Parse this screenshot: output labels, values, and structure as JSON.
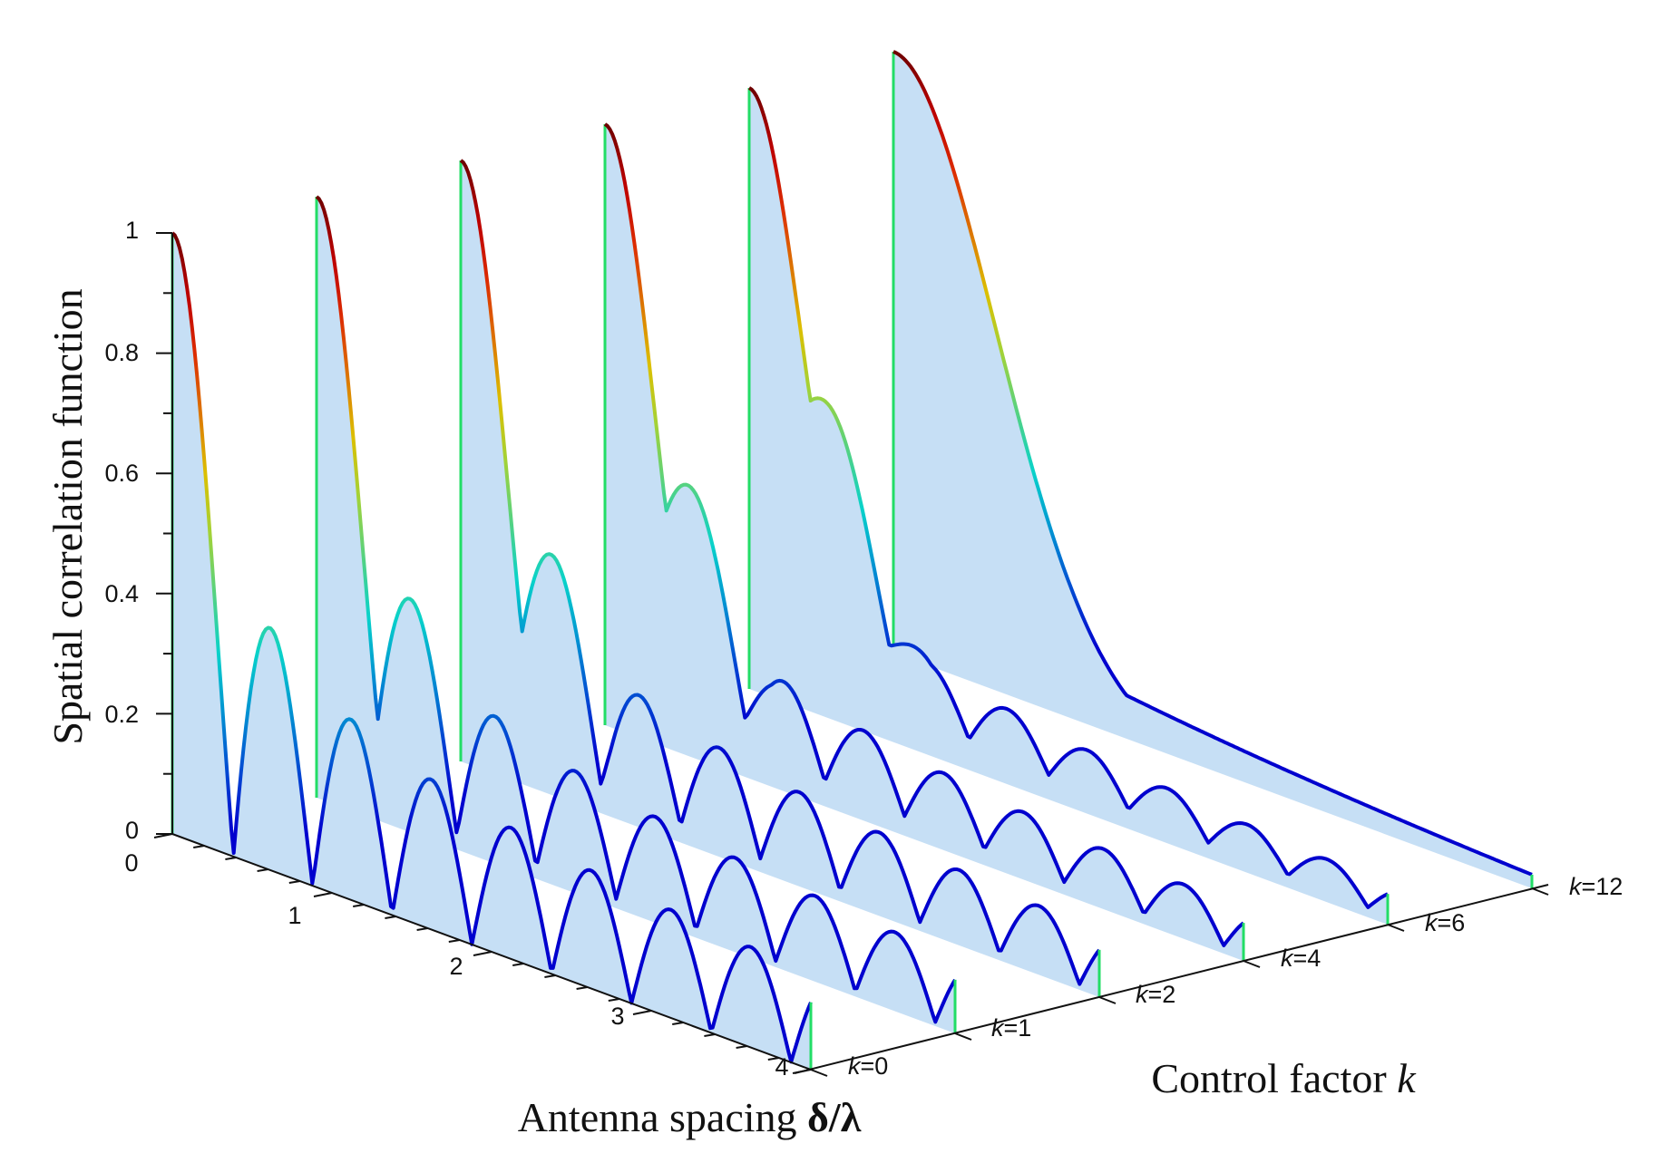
{
  "chart_data": {
    "type": "3d-waterfall",
    "title": "",
    "xlabel": {
      "prefix": "Antenna spacing ",
      "symbol": "δ/λ"
    },
    "ylabel": "Spatial correlation function",
    "zlabel": {
      "prefix": "Control factor ",
      "symbol": "k"
    },
    "x_range": [
      0,
      4
    ],
    "y_range": [
      0,
      1
    ],
    "x_ticks": [
      "0",
      "1",
      "2",
      "3",
      "4"
    ],
    "y_ticks": [
      "0",
      "0.2",
      "0.4",
      "0.6",
      "0.8",
      "1"
    ],
    "series_labels": [
      {
        "var": "k",
        "value": "=0"
      },
      {
        "var": "k",
        "value": "=1"
      },
      {
        "var": "k",
        "value": "=2"
      },
      {
        "var": "k",
        "value": "=4"
      },
      {
        "var": "k",
        "value": "=6"
      },
      {
        "var": "k",
        "value": "=12"
      }
    ],
    "series": [
      {
        "name": "k=0",
        "k": 0
      },
      {
        "name": "k=1",
        "k": 1
      },
      {
        "name": "k=2",
        "k": 2
      },
      {
        "name": "k=4",
        "k": 4
      },
      {
        "name": "k=6",
        "k": 6
      },
      {
        "name": "k=12",
        "k": 12
      }
    ],
    "function": "|J0(2π·δ/λ)| for k=0, softened toward monotone decay as k increases",
    "colormap": "jet",
    "fill_color": "#c6dff5"
  }
}
